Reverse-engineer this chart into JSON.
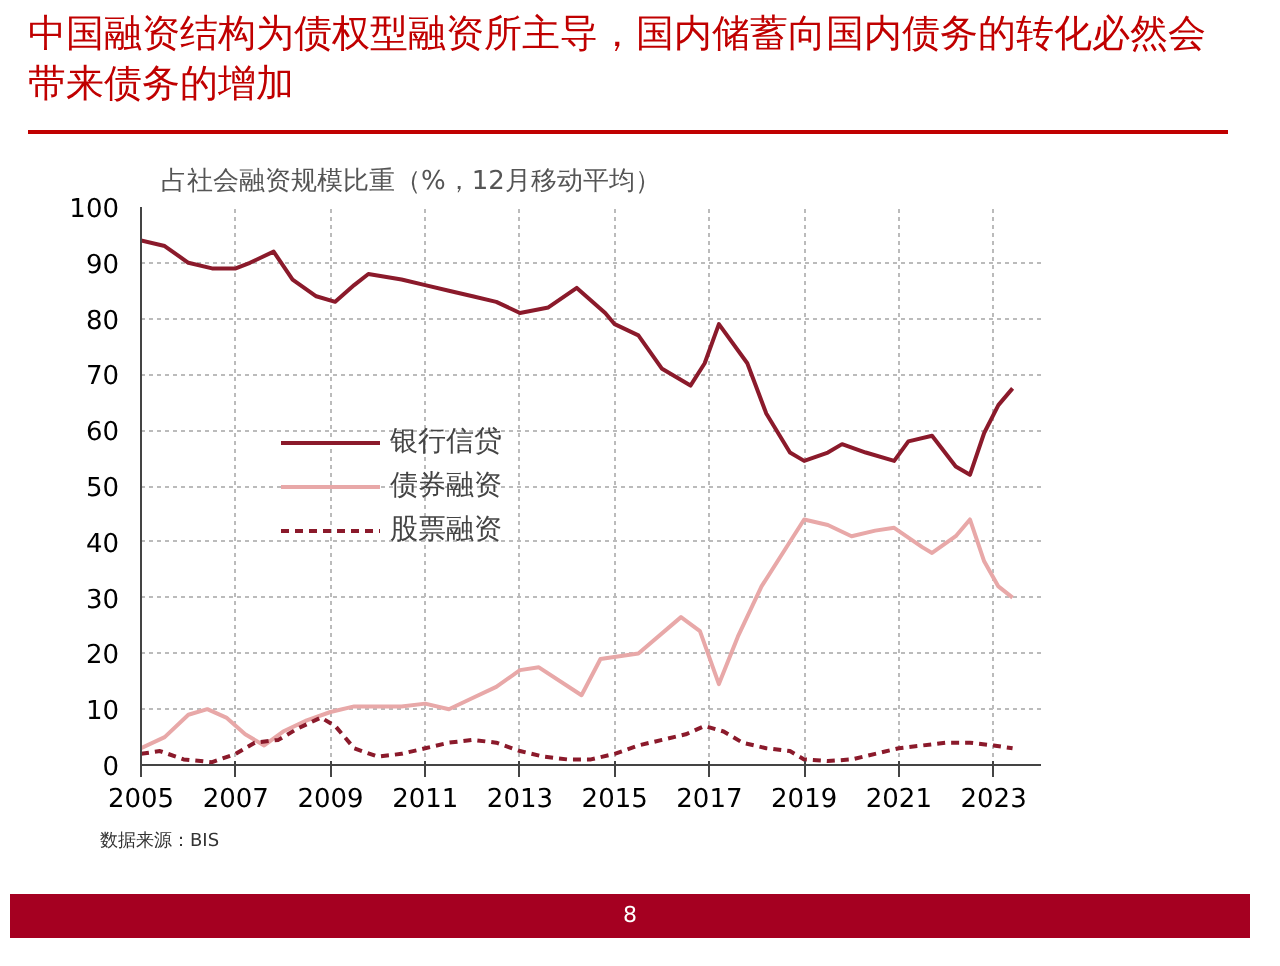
{
  "chart_data": {
    "type": "line",
    "title": "中国融资结构为债权型融资所主导，国内储蓄向国内债务的转化必然会带来债务的增加",
    "subtitle": "占社会融资规模比重（%，12月移动平均）",
    "annotations": [
      "数据来源：BIS",
      "8"
    ],
    "xlim": [
      2005,
      2024
    ],
    "xticks": [
      2005,
      2007,
      2009,
      2011,
      2013,
      2015,
      2017,
      2019,
      2021,
      2023
    ],
    "ylim": [
      0,
      100
    ],
    "yticks": [
      0,
      10,
      20,
      30,
      40,
      50,
      60,
      70,
      80,
      90,
      100
    ],
    "grid": true,
    "legend": "center left",
    "series": [
      {
        "name": "银行信贷",
        "color": "#8b1a2b",
        "line_style": "solid",
        "x": [
          2005.0,
          2005.5,
          2006.0,
          2006.5,
          2007.0,
          2007.3,
          2007.8,
          2008.2,
          2008.7,
          2009.1,
          2009.5,
          2009.8,
          2010.5,
          2011.0,
          2011.5,
          2012.0,
          2012.5,
          2013.0,
          2013.6,
          2014.2,
          2014.8,
          2015.0,
          2015.5,
          2016.0,
          2016.6,
          2016.9,
          2017.2,
          2017.8,
          2018.2,
          2018.7,
          2019.0,
          2019.5,
          2019.8,
          2020.3,
          2020.9,
          2021.2,
          2021.7,
          2022.2,
          2022.5,
          2022.8,
          2023.1,
          2023.4
        ],
        "values": [
          94,
          93,
          90,
          89,
          89,
          90,
          92,
          87,
          84,
          83,
          86,
          88,
          87,
          86,
          85,
          84,
          83,
          81,
          82,
          85.5,
          81,
          79,
          77,
          71,
          68,
          72,
          79,
          72,
          63,
          56,
          54.5,
          56,
          57.5,
          56,
          54.5,
          58,
          59,
          53.5,
          52,
          59.5,
          64.5,
          67.5
        ]
      },
      {
        "name": "债券融资",
        "color": "#e8a8a8",
        "line_style": "solid",
        "x": [
          2005.0,
          2005.5,
          2006.0,
          2006.4,
          2006.8,
          2007.2,
          2007.6,
          2008.0,
          2008.5,
          2009.0,
          2009.5,
          2010.5,
          2011.0,
          2011.5,
          2012.0,
          2012.5,
          2013.0,
          2013.4,
          2014.3,
          2014.7,
          2015.5,
          2016.4,
          2016.8,
          2017.2,
          2017.6,
          2018.1,
          2018.7,
          2019.0,
          2019.5,
          2020.0,
          2020.5,
          2020.9,
          2021.5,
          2021.7,
          2022.2,
          2022.5,
          2022.8,
          2023.1,
          2023.4
        ],
        "values": [
          3,
          5,
          9,
          10,
          8.5,
          5.5,
          3.5,
          6,
          8,
          9.5,
          10.5,
          10.5,
          11,
          10,
          12,
          14,
          17,
          17.5,
          12.5,
          19,
          20,
          26.5,
          24,
          14.5,
          23,
          32,
          40,
          44,
          43,
          41,
          42,
          42.5,
          39,
          38,
          41,
          44,
          36.5,
          32,
          30
        ]
      },
      {
        "name": "股票融资",
        "color": "#8b1a2b",
        "line_style": "dashed",
        "x": [
          2005.0,
          2005.4,
          2005.9,
          2006.5,
          2007.0,
          2007.4,
          2007.9,
          2008.3,
          2008.8,
          2009.1,
          2009.5,
          2010.0,
          2010.5,
          2011.0,
          2011.5,
          2012.0,
          2012.5,
          2013.0,
          2013.5,
          2014.0,
          2014.5,
          2015.0,
          2015.5,
          2016.0,
          2016.5,
          2016.9,
          2017.3,
          2017.7,
          2018.2,
          2018.7,
          2019.0,
          2019.5,
          2020.0,
          2020.5,
          2021.0,
          2021.5,
          2022.0,
          2022.5,
          2023.0,
          2023.4
        ],
        "values": [
          2,
          2.5,
          1,
          0.5,
          2,
          4,
          4.5,
          6.5,
          8.5,
          7,
          3,
          1.5,
          2,
          3,
          4,
          4.5,
          4,
          2.5,
          1.5,
          1,
          1,
          2,
          3.5,
          4.5,
          5.5,
          7,
          6,
          4,
          3,
          2.5,
          1,
          0.7,
          1,
          2,
          3,
          3.5,
          4,
          4,
          3.5,
          3
        ]
      }
    ]
  }
}
